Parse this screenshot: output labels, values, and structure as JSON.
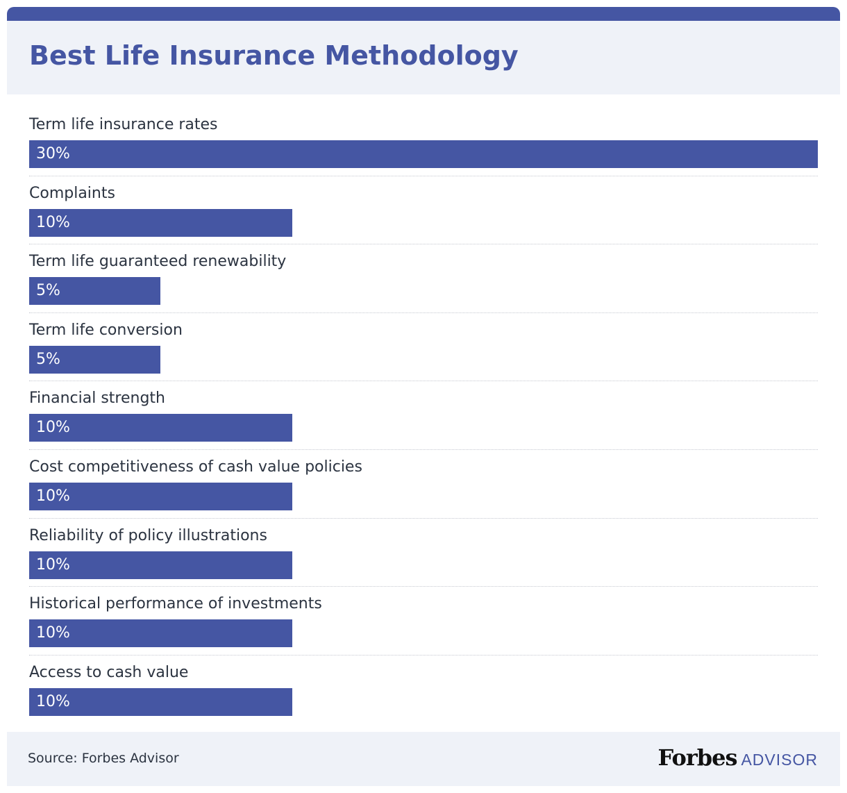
{
  "title": "Best Life Insurance Methodology",
  "chart_data": {
    "type": "bar",
    "orientation": "horizontal",
    "title": "Best Life Insurance Methodology",
    "categories": [
      "Term life insurance rates",
      "Complaints",
      "Term life guaranteed renewability",
      "Term life conversion",
      "Financial strength",
      "Cost competitiveness of cash value policies",
      "Reliability of policy illustrations",
      "Historical performance of investments",
      "Access to cash value"
    ],
    "values": [
      30,
      10,
      5,
      5,
      10,
      10,
      10,
      10,
      10
    ],
    "value_labels": [
      "30%",
      "10%",
      "5%",
      "5%",
      "10%",
      "10%",
      "10%",
      "10%",
      "10%"
    ],
    "xlim": [
      0,
      30
    ],
    "unit": "%",
    "bar_color": "#4556a3"
  },
  "footer": {
    "source": "Source: Forbes Advisor",
    "logo_brand": "Forbes",
    "logo_suffix": "ADVISOR"
  }
}
